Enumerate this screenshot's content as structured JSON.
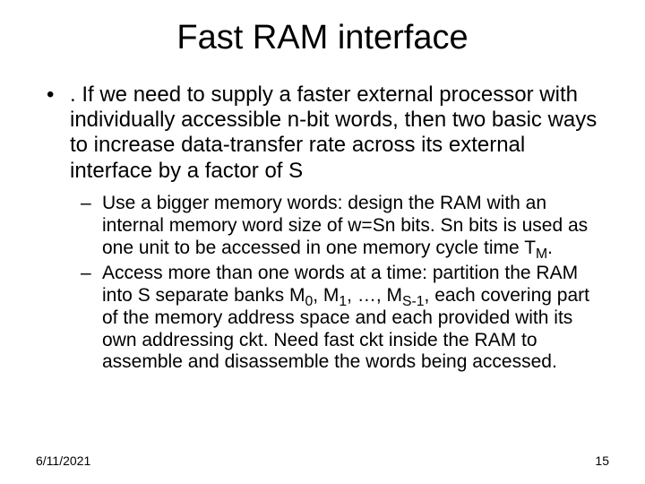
{
  "slide": {
    "title": "Fast RAM interface",
    "bullet1_prefix": ". ",
    "bullet1_text": "If we need to supply a faster external processor with individually accessible n-bit words, then two basic ways to increase data-transfer rate across its external interface by a factor of S",
    "sub1_a": "Use a bigger memory words: design the RAM with an internal memory word size of w=Sn bits. Sn bits is used as one unit to be accessed in one memory cycle time T",
    "sub1_a_sub": "M",
    "sub1_a_tail": ".",
    "sub2_a": "Access more than one words at a time: partition the RAM into S separate banks M",
    "sub2_s0": "0",
    "sub2_b": ", M",
    "sub2_s1": "1",
    "sub2_c": ", …, M",
    "sub2_s2": "S-1",
    "sub2_d": ", each covering part of the memory address space and each provided with its own addressing ckt. Need fast ckt inside the RAM to assemble and disassemble the words being accessed.",
    "footer_date": "6/11/2021",
    "footer_page": "15"
  }
}
